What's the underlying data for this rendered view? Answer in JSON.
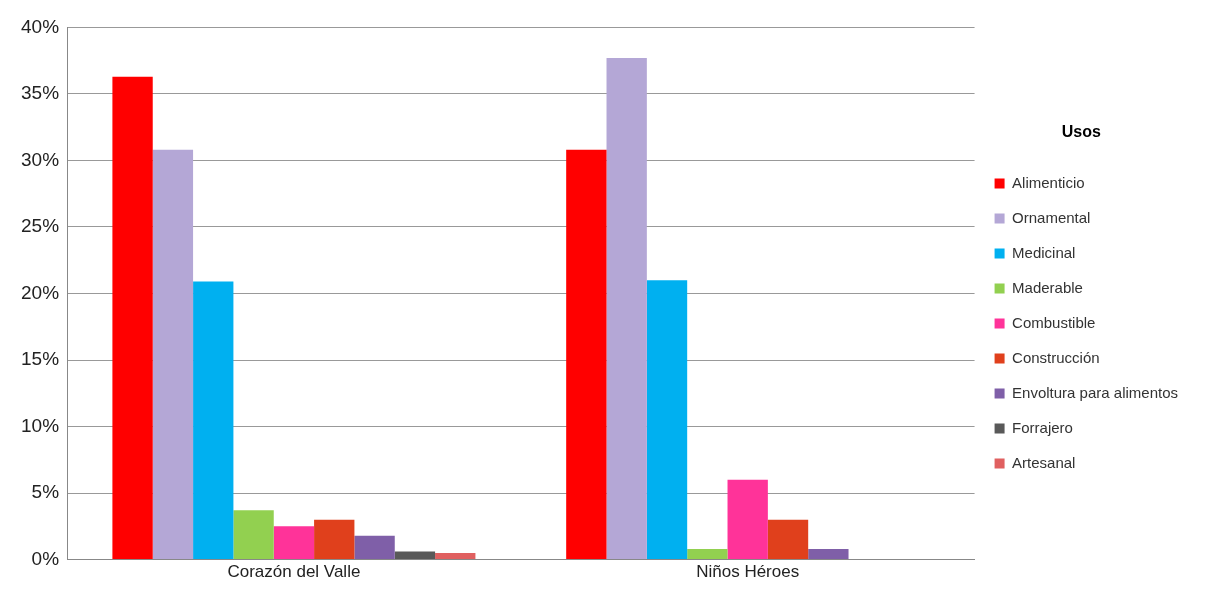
{
  "chart_data": {
    "type": "bar",
    "categories": [
      "Corazón del Valle",
      "Niños Héroes"
    ],
    "legend_title": "Usos",
    "legend": "right",
    "grid": "y",
    "ylim": [
      0,
      40
    ],
    "yticks": [
      {
        "value": 0,
        "label": "0%"
      },
      {
        "value": 5,
        "label": "5%"
      },
      {
        "value": 10,
        "label": "10%"
      },
      {
        "value": 15,
        "label": "15%"
      },
      {
        "value": 20,
        "label": "20%"
      },
      {
        "value": 25,
        "label": "25%"
      },
      {
        "value": 30,
        "label": "30%"
      },
      {
        "value": 35,
        "label": "35%"
      },
      {
        "value": 40,
        "label": "40%"
      }
    ],
    "series": [
      {
        "name": "Alimenticio",
        "color": "#ff0000",
        "values": [
          36.3,
          30.8
        ]
      },
      {
        "name": "Ornamental",
        "color": "#b4a7d6",
        "values": [
          30.8,
          37.7
        ]
      },
      {
        "name": "Medicinal",
        "color": "#00b0f0",
        "values": [
          20.9,
          21.0
        ]
      },
      {
        "name": "Maderable",
        "color": "#92d050",
        "values": [
          3.7,
          0.8
        ]
      },
      {
        "name": "Combustible",
        "color": "#ff3399",
        "values": [
          2.5,
          6.0
        ]
      },
      {
        "name": "Construcción",
        "color": "#e0401c",
        "values": [
          3.0,
          3.0
        ]
      },
      {
        "name": "Envoltura para alimentos",
        "color": "#7f5fa8",
        "values": [
          1.8,
          0.8
        ]
      },
      {
        "name": "Forrajero",
        "color": "#595959",
        "values": [
          0.6,
          0
        ]
      },
      {
        "name": "Artesanal",
        "color": "#e06060",
        "values": [
          0.5,
          0
        ]
      }
    ]
  }
}
